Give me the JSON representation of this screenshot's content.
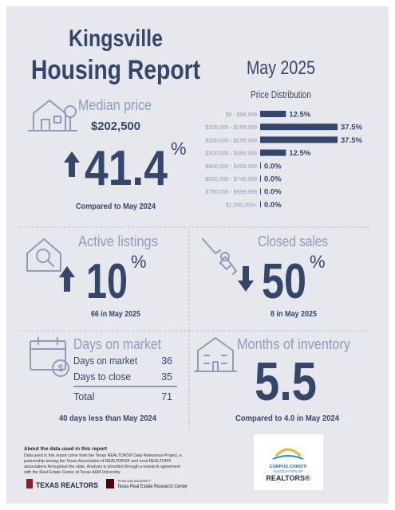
{
  "header": {
    "city": "Kingsville",
    "title": "Housing Report",
    "period": "May 2025"
  },
  "median_price": {
    "label": "Median price",
    "value": "$202,500",
    "change": 41.4,
    "unit": "%",
    "comparison": "Compared to May 2024"
  },
  "price_distribution": {
    "title": "Price Distribution",
    "categories": [
      "$0 - $99,999",
      "$100,000 - $199,999",
      "$200,000 - $299,999",
      "$300,000 - $399,999",
      "$400,000 - $499,999",
      "$500,000 - $749,999",
      "$750,000 - $999,999",
      "$1,000,000+"
    ],
    "values": [
      12.5,
      37.5,
      37.5,
      12.5,
      0,
      0,
      0,
      0
    ],
    "value_labels": [
      "12.5%",
      "37.5%",
      "37.5%",
      "12.5%",
      "0.0%",
      "0.0%",
      "0.0%",
      "0.0%"
    ],
    "color": "#36466b"
  },
  "active_listings": {
    "label": "Active listings",
    "change": 10,
    "unit": "%",
    "detail": "66 in May 2025"
  },
  "closed_sales": {
    "label": "Closed sales",
    "change": 50,
    "unit": "%",
    "detail": "8 in May 2025"
  },
  "days_on_market": {
    "label": "Days on market",
    "rows": [
      [
        "Days on market",
        36
      ],
      [
        "Days to close",
        35
      ]
    ],
    "total": [
      "Total",
      71
    ],
    "comparison": "40 days less than May 2024"
  },
  "months_of_inventory": {
    "label": "Months of inventory",
    "value": 5.5,
    "comparison": "Compared to 4.0 in May 2024"
  },
  "footer": {
    "about_title": "About the data used in this report",
    "about_text": [
      "Data used in this report come from the Texas REALTORS® Data Relevance Project, a",
      "partnership among the Texas Association of REALTORS® and local REALTOR®",
      "associations throughout the state. Analysis is provided through a research agreement",
      "with the Real Estate Center at Texas A&M University."
    ],
    "logo_realtors": "TEXAS REALTORS",
    "logo_university": "TEXAS A&M UNIVERSITY",
    "logo_center": "Texas Real Estate Research Center",
    "association": [
      "CORPUS CHRISTI",
      "ASSOCIATION OF",
      "REALTORS®"
    ]
  }
}
